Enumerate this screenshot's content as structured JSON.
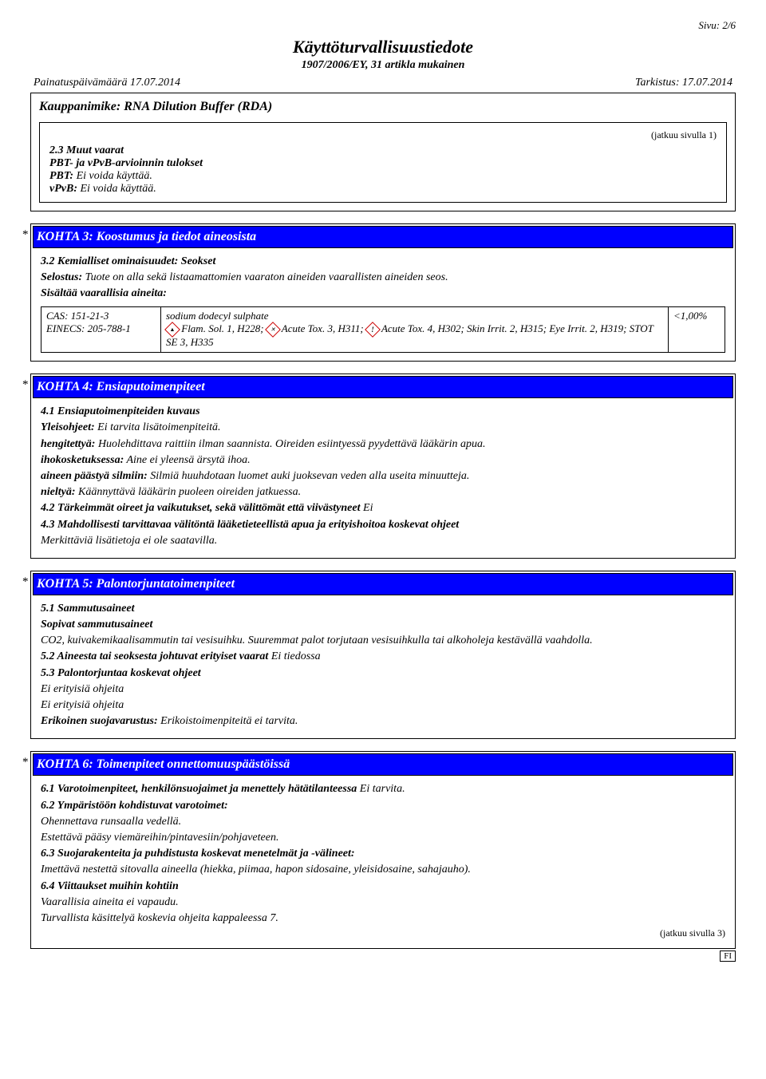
{
  "page_label": "Sivu: 2/6",
  "doc_title": "Käyttöturvallisuustiedote",
  "doc_subtitle": "1907/2006/EY, 31 artikla mukainen",
  "print_date_label": "Painatuspäivämäärä 17.07.2014",
  "revision_label": "Tarkistus: 17.07.2014",
  "tradename_label": "Kauppanimike: RNA Dilution Buffer (RDA)",
  "cont_from": "(jatkuu sivulla 1)",
  "intro": {
    "heading": "2.3 Muut vaarat",
    "line1": "PBT- ja vPvB-arvioinnin tulokset",
    "line2_bold": "PBT:",
    "line2_rest": " Ei voida käyttää.",
    "line3_bold": "vPvB:",
    "line3_rest": " Ei voida käyttää."
  },
  "section3": {
    "title": "KOHTA 3: Koostumus ja tiedot aineosista",
    "sub1": "3.2 Kemialliset ominaisuudet: Seokset",
    "desc_bold": "Selostus:",
    "desc_rest": " Tuote on alla sekä listaamattomien vaaraton aineiden vaarallisten aineiden seos.",
    "contains": "Sisältää vaarallisia aineita:",
    "cas": "CAS: 151-21-3",
    "einecs": "EINECS: 205-788-1",
    "substance": "sodium dodecyl sulphate",
    "hazard_line": " Flam. Sol. 1, H228;  Acute Tox. 3, H311;  Acute Tox. 4, H302; Skin Irrit. 2, H315; Eye Irrit. 2, H319; STOT SE 3, H335",
    "pct": "<1,00%"
  },
  "section4": {
    "title": "KOHTA 4: Ensiaputoimenpiteet",
    "h1": "4.1 Ensiaputoimenpiteiden kuvaus",
    "l1b": "Yleisohjeet:",
    "l1r": " Ei tarvita lisätoimenpiteitä.",
    "l2b": "hengitettyä:",
    "l2r": " Huolehdittava raittiin ilman saannista. Oireiden esiintyessä pyydettävä lääkärin apua.",
    "l3b": "ihokosketuksessa:",
    "l3r": " Aine ei yleensä ärsytä ihoa.",
    "l4b": "aineen päästyä silmiin:",
    "l4r": " Silmiä huuhdotaan luomet auki juoksevan veden alla useita minuutteja.",
    "l5b": "nieltyä:",
    "l5r": " Käännyttävä lääkärin puoleen oireiden jatkuessa.",
    "l6b": "4.2 Tärkeimmät oireet ja vaikutukset, sekä välittömät että viivästyneet",
    "l6r": " Ei",
    "l7b": "4.3 Mahdollisesti tarvittavaa välitöntä lääketieteellistä apua ja erityishoitoa koskevat ohjeet",
    "l7r": "Merkittäviä lisätietoja ei ole saatavilla."
  },
  "section5": {
    "title": "KOHTA 5: Palontorjuntatoimenpiteet",
    "h1": "5.1 Sammutusaineet",
    "h1s": "Sopivat sammutusaineet",
    "p1": "CO2, kuivakemikaalisammutin tai vesisuihku. Suuremmat palot torjutaan vesisuihkulla tai alkoholeja kestävällä vaahdolla.",
    "h2b": "5.2 Aineesta tai seoksesta johtuvat erityiset vaarat",
    "h2r": " Ei tiedossa",
    "h3": "5.3 Palontorjuntaa koskevat ohjeet",
    "p3a": "Ei erityisiä ohjeita",
    "p3b": "Ei erityisiä ohjeita",
    "h4b": "Erikoinen suojavarustus:",
    "h4r": " Erikoistoimenpiteitä ei tarvita."
  },
  "section6": {
    "title": "KOHTA 6: Toimenpiteet onnettomuuspäästöissä",
    "l1b": "6.1 Varotoimenpiteet, henkilönsuojaimet ja menettely hätätilanteessa",
    "l1r": " Ei tarvita.",
    "l2": "6.2 Ympäristöön kohdistuvat varotoimet:",
    "p2a": "Ohennettava runsaalla vedellä.",
    "p2b": "Estettävä pääsy viemäreihin/pintavesiin/pohjaveteen.",
    "l3": "6.3 Suojarakenteita ja puhdistusta koskevat menetelmät ja -välineet:",
    "p3": "Imettävä nestettä sitovalla aineella (hiekka, piimaa, hapon sidosaine, yleisidosaine, sahajauho).",
    "l4": "6.4 Viittaukset muihin kohtiin",
    "p4a": "Vaarallisia aineita ei vapaudu.",
    "p4b": "Turvallista käsittelyä koskevia ohjeita kappaleessa 7."
  },
  "cont_to": "(jatkuu sivulla 3)",
  "lang_tag": "FI",
  "colors": {
    "section_bg": "#0000ff",
    "section_fg": "#ffffff",
    "border": "#000000",
    "ghs_border": "#cc0000"
  }
}
